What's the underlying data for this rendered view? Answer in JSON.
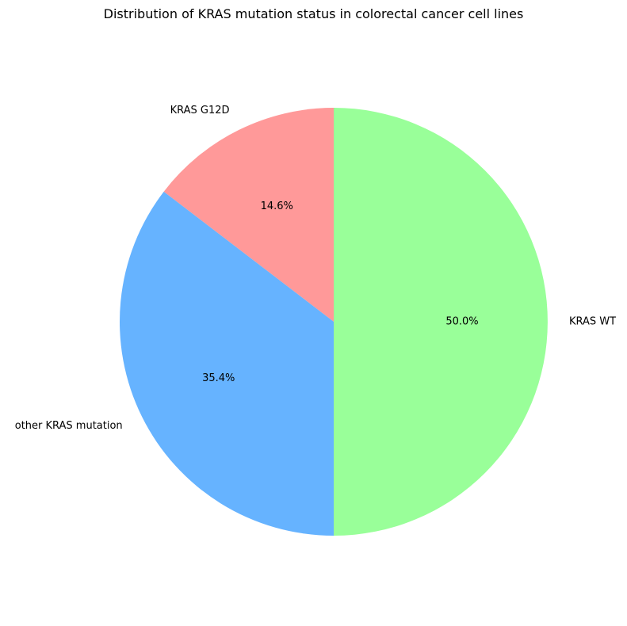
{
  "chart_data": {
    "type": "pie",
    "title": "Distribution of KRAS mutation status in colorectal cancer cell lines",
    "start_angle_deg": 90,
    "direction": "counterclockwise",
    "slices": [
      {
        "label": "KRAS G12D",
        "value": 14.6,
        "pct_label": "14.6%",
        "color": "#ff9999"
      },
      {
        "label": "other KRAS mutation",
        "value": 35.4,
        "pct_label": "35.4%",
        "color": "#66b3ff"
      },
      {
        "label": "KRAS WT",
        "value": 50.0,
        "pct_label": "50.0%",
        "color": "#99ff99"
      }
    ]
  }
}
